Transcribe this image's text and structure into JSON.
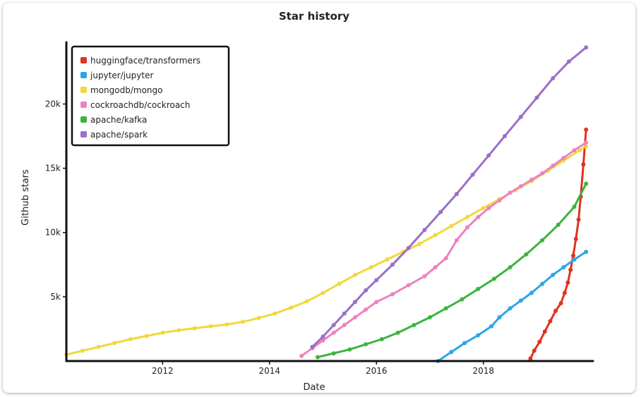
{
  "chart_data": {
    "type": "line",
    "title": "Star history",
    "xlabel": "Date",
    "ylabel": "Github stars",
    "xlim": [
      2010.2,
      2020.05
    ],
    "ylim": [
      0,
      24800
    ],
    "x_ticks": [
      2012,
      2014,
      2016,
      2018
    ],
    "x_tick_labels": [
      "2012",
      "2014",
      "2016",
      "2018"
    ],
    "y_ticks": [
      5000,
      10000,
      15000,
      20000
    ],
    "y_tick_labels": [
      "5k",
      "10k",
      "15k",
      "20k"
    ],
    "grid": false,
    "legend_position": "top-left",
    "series": [
      {
        "name": "huggingface/transformers",
        "color": "#e0321e",
        "x": [
          2018.88,
          2018.95,
          2019.05,
          2019.15,
          2019.25,
          2019.35,
          2019.45,
          2019.52,
          2019.58,
          2019.63,
          2019.68,
          2019.73,
          2019.78,
          2019.82,
          2019.87,
          2019.92
        ],
        "y": [
          200,
          800,
          1500,
          2300,
          3100,
          3900,
          4500,
          5300,
          6100,
          7100,
          8200,
          9500,
          11000,
          12800,
          15300,
          18000
        ]
      },
      {
        "name": "jupyter/jupyter",
        "color": "#2ba7e6",
        "x": [
          2017.15,
          2017.4,
          2017.65,
          2017.9,
          2018.15,
          2018.3,
          2018.5,
          2018.7,
          2018.9,
          2019.1,
          2019.3,
          2019.5,
          2019.7,
          2019.92
        ],
        "y": [
          0,
          700,
          1400,
          2000,
          2700,
          3400,
          4100,
          4700,
          5300,
          6000,
          6700,
          7300,
          7900,
          8500
        ]
      },
      {
        "name": "mongodb/mongo",
        "color": "#f0d93d",
        "x": [
          2010.2,
          2010.5,
          2010.8,
          2011.1,
          2011.4,
          2011.7,
          2012.0,
          2012.3,
          2012.6,
          2012.9,
          2013.2,
          2013.5,
          2013.8,
          2014.1,
          2014.4,
          2014.7,
          2015.0,
          2015.3,
          2015.6,
          2015.9,
          2016.2,
          2016.5,
          2016.8,
          2017.1,
          2017.4,
          2017.7,
          2018.0,
          2018.3,
          2018.6,
          2018.9,
          2019.2,
          2019.5,
          2019.8,
          2019.92
        ],
        "y": [
          500,
          800,
          1100,
          1400,
          1700,
          1950,
          2200,
          2400,
          2550,
          2700,
          2850,
          3050,
          3350,
          3700,
          4150,
          4650,
          5300,
          6000,
          6700,
          7300,
          7900,
          8500,
          9100,
          9800,
          10500,
          11200,
          11900,
          12600,
          13300,
          14000,
          14800,
          15600,
          16400,
          16700
        ]
      },
      {
        "name": "cockroachdb/cockroach",
        "color": "#ee82bf",
        "x": [
          2014.6,
          2014.8,
          2015.0,
          2015.2,
          2015.4,
          2015.6,
          2015.8,
          2016.0,
          2016.3,
          2016.6,
          2016.9,
          2017.1,
          2017.3,
          2017.5,
          2017.7,
          2017.9,
          2018.1,
          2018.3,
          2018.5,
          2018.7,
          2018.9,
          2019.1,
          2019.3,
          2019.5,
          2019.7,
          2019.92
        ],
        "y": [
          400,
          1000,
          1600,
          2200,
          2800,
          3400,
          4000,
          4600,
          5200,
          5900,
          6600,
          7300,
          8000,
          9400,
          10400,
          11200,
          11900,
          12500,
          13100,
          13600,
          14100,
          14600,
          15200,
          15800,
          16400,
          17000
        ]
      },
      {
        "name": "apache/kafka",
        "color": "#3cb43c",
        "x": [
          2014.9,
          2015.2,
          2015.5,
          2015.8,
          2016.1,
          2016.4,
          2016.7,
          2017.0,
          2017.3,
          2017.6,
          2017.9,
          2018.2,
          2018.5,
          2018.8,
          2019.1,
          2019.4,
          2019.7,
          2019.92
        ],
        "y": [
          300,
          600,
          900,
          1300,
          1700,
          2200,
          2800,
          3400,
          4100,
          4800,
          5600,
          6400,
          7300,
          8300,
          9400,
          10600,
          12000,
          13800
        ]
      },
      {
        "name": "apache/spark",
        "color": "#9b6fc9",
        "x": [
          2014.8,
          2015.0,
          2015.2,
          2015.4,
          2015.6,
          2015.8,
          2016.0,
          2016.3,
          2016.6,
          2016.9,
          2017.2,
          2017.5,
          2017.8,
          2018.1,
          2018.4,
          2018.7,
          2019.0,
          2019.3,
          2019.6,
          2019.92
        ],
        "y": [
          1100,
          1900,
          2800,
          3700,
          4600,
          5500,
          6300,
          7500,
          8800,
          10200,
          11600,
          13000,
          14500,
          16000,
          17500,
          19000,
          20500,
          22000,
          23300,
          24400
        ]
      }
    ]
  }
}
